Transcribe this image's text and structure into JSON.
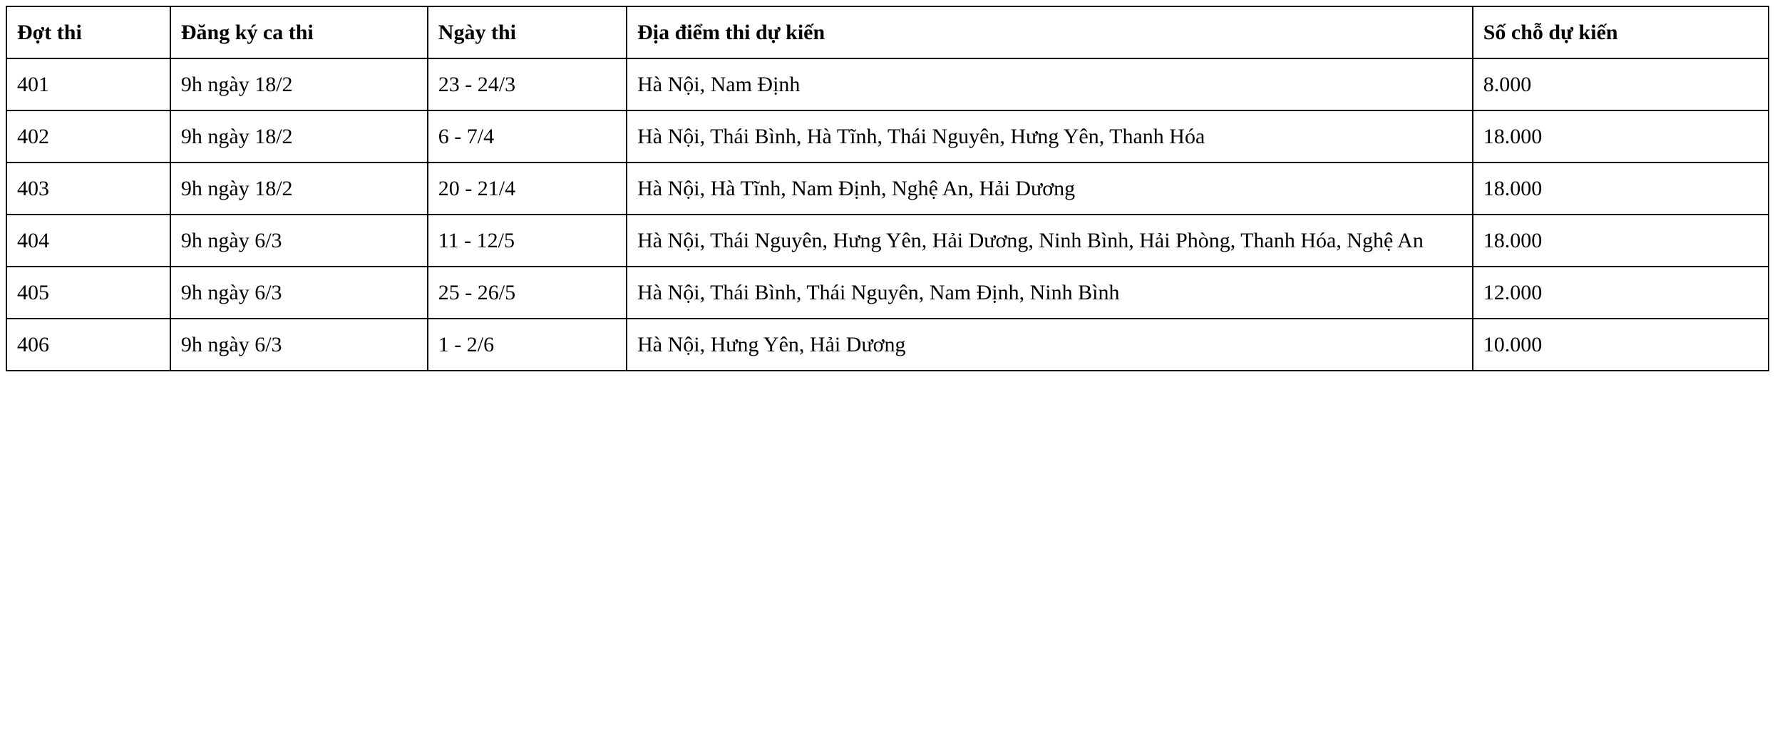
{
  "table": {
    "type": "table",
    "border_color": "#000000",
    "background_color": "#ffffff",
    "text_color": "#000000",
    "font_family": "Times New Roman",
    "header_fontsize": 30,
    "cell_fontsize": 30,
    "header_fontweight": "bold",
    "line_height": 1.7,
    "border_width": 2,
    "columns": [
      {
        "key": "dot_thi",
        "label": "Đợt thi",
        "width_pct": 9.3,
        "align": "left"
      },
      {
        "key": "dang_ky",
        "label": "Đăng ký ca thi",
        "width_pct": 14.6,
        "align": "left"
      },
      {
        "key": "ngay_thi",
        "label": "Ngày thi",
        "width_pct": 11.3,
        "align": "left"
      },
      {
        "key": "dia_diem",
        "label": "Địa điểm thi dự kiến",
        "width_pct": 48.0,
        "align": "left"
      },
      {
        "key": "so_cho",
        "label": "Số chỗ dự kiến",
        "width_pct": 16.8,
        "align": "left"
      }
    ],
    "rows": [
      {
        "dot_thi": "401",
        "dang_ky": "9h ngày 18/2",
        "ngay_thi": "23 - 24/3",
        "dia_diem": "Hà Nội, Nam Định",
        "so_cho": "8.000"
      },
      {
        "dot_thi": "402",
        "dang_ky": "9h ngày 18/2",
        "ngay_thi": "6 - 7/4",
        "dia_diem": "Hà Nội, Thái Bình, Hà Tĩnh, Thái Nguyên, Hưng Yên, Thanh Hóa",
        "so_cho": "18.000"
      },
      {
        "dot_thi": "403",
        "dang_ky": "9h ngày 18/2",
        "ngay_thi": "20 - 21/4",
        "dia_diem": "Hà Nội, Hà Tĩnh, Nam Định, Nghệ An, Hải Dương",
        "so_cho": "18.000"
      },
      {
        "dot_thi": "404",
        "dang_ky": "9h ngày 6/3",
        "ngay_thi": "11 - 12/5",
        "dia_diem": "Hà Nội, Thái Nguyên, Hưng Yên, Hải Dương, Ninh Bình, Hải Phòng, Thanh Hóa, Nghệ An",
        "so_cho": "18.000"
      },
      {
        "dot_thi": "405",
        "dang_ky": "9h ngày 6/3",
        "ngay_thi": "25 - 26/5",
        "dia_diem": "Hà Nội, Thái Bình, Thái Nguyên, Nam Định, Ninh Bình",
        "so_cho": "12.000"
      },
      {
        "dot_thi": "406",
        "dang_ky": "9h ngày 6/3",
        "ngay_thi": "1 - 2/6",
        "dia_diem": "Hà Nội, Hưng Yên, Hải Dương",
        "so_cho": "10.000"
      }
    ]
  }
}
